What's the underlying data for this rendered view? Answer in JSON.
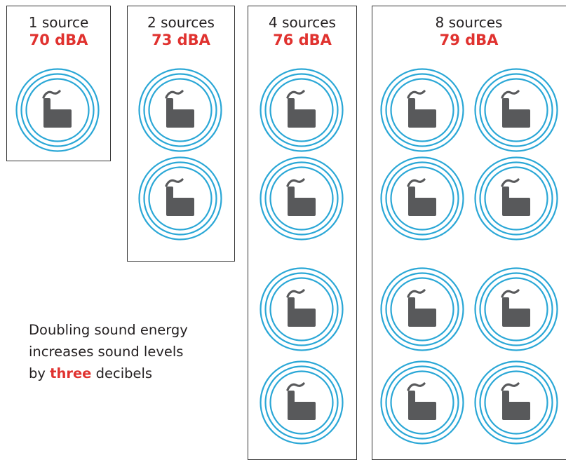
{
  "colors": {
    "ring": "#2aa7d6",
    "factory": "#58595b",
    "highlight": "#e0322f",
    "border": "#333333",
    "text": "#231f20"
  },
  "icons": {
    "source": "factory-icon",
    "waves": "sound-waves-icon"
  },
  "panels": [
    {
      "count_label": "1 source",
      "level_label": "70 dBA",
      "source_count": 1
    },
    {
      "count_label": "2 sources",
      "level_label": "73 dBA",
      "source_count": 2
    },
    {
      "count_label": "4 sources",
      "level_label": "76 dBA",
      "source_count": 4
    },
    {
      "count_label": "8 sources",
      "level_label": "79 dBA",
      "source_count": 8
    }
  ],
  "caption": {
    "line1": "Doubling sound energy",
    "line2": "increases sound levels",
    "line3_prefix": "by",
    "line3_emphasis": "three",
    "line3_suffix": "decibels"
  }
}
